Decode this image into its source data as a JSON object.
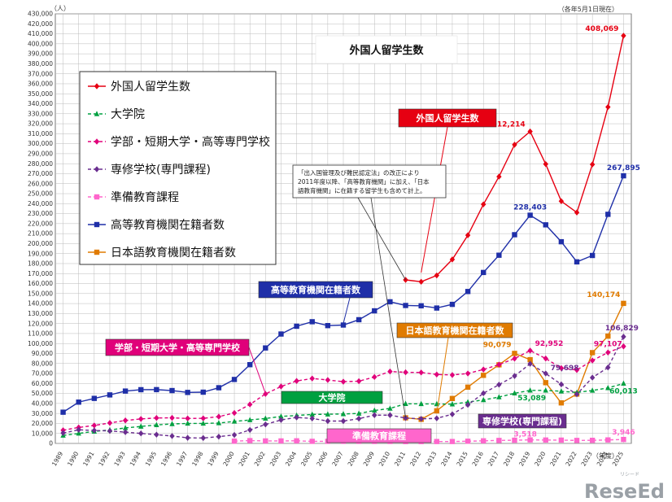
{
  "chart_data": {
    "type": "line",
    "title": "外国人留学生数",
    "unit_label": "（人）",
    "date_note": "（各年5月1日現在）",
    "x_unit_label": "（年度）",
    "ylim": [
      0,
      430000
    ],
    "ytick_step": 10000,
    "grid": true,
    "legend_position": "upper-left",
    "x": [
      "1989",
      "1990",
      "1991",
      "1992",
      "1993",
      "1994",
      "1995",
      "1996",
      "1997",
      "1998",
      "1999",
      "2000",
      "2001",
      "2002",
      "2003",
      "2004",
      "2005",
      "2006",
      "2007",
      "2008",
      "2009",
      "2010",
      "2011",
      "2012",
      "2013",
      "2014",
      "2015",
      "2016",
      "2017",
      "2018",
      "2019",
      "2020",
      "2021",
      "2022",
      "2023",
      "2024",
      "2025"
    ],
    "series": [
      {
        "key": "total",
        "name": "外国人留学生数",
        "color": "#e60012",
        "marker": "diamond",
        "dash": "",
        "values": [
          null,
          null,
          null,
          null,
          null,
          null,
          null,
          null,
          null,
          null,
          null,
          null,
          null,
          null,
          null,
          null,
          null,
          null,
          null,
          null,
          null,
          null,
          163697,
          161848,
          168145,
          184155,
          208379,
          239287,
          267042,
          298980,
          312214,
          279597,
          242444,
          231146,
          279274,
          336708,
          408069
        ]
      },
      {
        "key": "higher_ed",
        "name": "高等教育機関在籍者数",
        "color": "#1f2fa8",
        "marker": "square",
        "dash": "",
        "values": [
          31251,
          41347,
          45066,
          48561,
          52405,
          53787,
          53847,
          52921,
          51047,
          51298,
          55755,
          64011,
          78812,
          95550,
          109508,
          117302,
          121812,
          117927,
          118498,
          123829,
          132720,
          141774,
          138075,
          137756,
          135519,
          139185,
          152062,
          171122,
          188384,
          208901,
          228403,
          218783,
          201877,
          181741,
          188114,
          229313,
          267895
        ]
      },
      {
        "key": "japanese_lang",
        "name": "日本語教育機関在籍者数",
        "color": "#e07b00",
        "marker": "square",
        "dash": "",
        "values": [
          null,
          null,
          null,
          null,
          null,
          null,
          null,
          null,
          null,
          null,
          null,
          null,
          null,
          null,
          null,
          null,
          null,
          null,
          null,
          null,
          null,
          null,
          25622,
          24092,
          32626,
          44970,
          56317,
          68165,
          78658,
          90079,
          83811,
          60814,
          40567,
          49405,
          90873,
          107395,
          140174
        ]
      },
      {
        "key": "undergrad",
        "name": "学部・短期大学・高等専門学校",
        "color": "#e0007a",
        "marker": "diamond",
        "dash": "4,3",
        "values": [
          13200,
          16000,
          18000,
          20500,
          23000,
          24500,
          25500,
          25600,
          25000,
          25100,
          26800,
          30500,
          39000,
          49500,
          57000,
          62500,
          65000,
          63500,
          61800,
          62300,
          66500,
          72000,
          71200,
          71000,
          69000,
          68500,
          70000,
          74000,
          78900,
          84900,
          92952,
          85000,
          75400,
          73500,
          83000,
          91000,
          97107
        ]
      },
      {
        "key": "graduate",
        "name": "大学院",
        "color": "#00a040",
        "marker": "triangle",
        "dash": "4,3",
        "values": [
          8000,
          10000,
          12000,
          13500,
          15500,
          17000,
          18500,
          19500,
          20000,
          20000,
          20400,
          22000,
          23500,
          25000,
          27000,
          28000,
          29000,
          29200,
          29500,
          30000,
          33000,
          35000,
          39700,
          39600,
          39500,
          39300,
          41400,
          43500,
          46400,
          50200,
          53089,
          53100,
          52200,
          50980,
          53000,
          55500,
          60013
        ]
      },
      {
        "key": "vocational",
        "name": "専修学校（専門課程）",
        "color": "#6a2d8f",
        "marker": "diamond",
        "dash": "4,3",
        "values": [
          10400,
          13600,
          13000,
          12500,
          11300,
          10000,
          8800,
          7400,
          5600,
          5400,
          6800,
          8500,
          13500,
          19000,
          23500,
          26000,
          25000,
          22400,
          22400,
          24800,
          28300,
          28300,
          25400,
          24600,
          25100,
          29200,
          38600,
          50200,
          58800,
          67500,
          79698,
          70000,
          59100,
          49200,
          65900,
          76000,
          106829
        ]
      },
      {
        "key": "prep",
        "name": "準備教育課程",
        "color": "#ff66cc",
        "marker": "square",
        "dash": "4,3",
        "values": [
          null,
          null,
          null,
          null,
          null,
          null,
          null,
          null,
          null,
          null,
          null,
          2300,
          2800,
          2500,
          2500,
          2600,
          2100,
          2100,
          2100,
          2100,
          2000,
          2000,
          1800,
          1800,
          1900,
          1900,
          2200,
          2600,
          3000,
          3200,
          3518,
          3400,
          3300,
          3000,
          3100,
          3500,
          3946
        ]
      }
    ],
    "legend_entries": [
      "外国人留学生数",
      "大学院",
      "学部・短期大学・高等専門学校",
      "専修学校(専門課程)",
      "準備教育課程",
      "高等教育機関在籍者数",
      "日本語教育機関在籍者数"
    ],
    "annotation_boxes": [
      {
        "key": "box_total",
        "text": "外国人留学生数",
        "bg": "#e60012",
        "fg": "#ffffff"
      },
      {
        "key": "box_higher",
        "text": "高等教育機関在籍者数",
        "bg": "#1f2fa8",
        "fg": "#ffffff"
      },
      {
        "key": "box_japanese",
        "text": "日本語教育機関在籍者数",
        "bg": "#e07b00",
        "fg": "#ffffff"
      },
      {
        "key": "box_undergrad",
        "text": "学部・短期大学・高等専門学校",
        "bg": "#e0007a",
        "fg": "#ffffff"
      },
      {
        "key": "box_graduate",
        "text": "大学院",
        "bg": "#00a040",
        "fg": "#ffffff"
      },
      {
        "key": "box_vocational",
        "text": "専修学校(専門課程)",
        "bg": "#6a2d8f",
        "fg": "#ffffff"
      },
      {
        "key": "box_prep",
        "text": "準備教育課程",
        "bg": "#ff66cc",
        "fg": "#ffffff"
      }
    ],
    "data_labels": [
      {
        "key": "total",
        "year": "2019",
        "text": "312,214",
        "color": "#e60012"
      },
      {
        "key": "total",
        "year": "2025",
        "text": "408,069",
        "color": "#e60012"
      },
      {
        "key": "higher_ed",
        "year": "2019",
        "text": "228,403",
        "color": "#1f2fa8"
      },
      {
        "key": "higher_ed",
        "year": "2025",
        "text": "267,895",
        "color": "#1f2fa8"
      },
      {
        "key": "japanese_lang",
        "year": "2018",
        "text": "90,079",
        "color": "#e07b00"
      },
      {
        "key": "japanese_lang",
        "year": "2025",
        "text": "140,174",
        "color": "#e07b00"
      },
      {
        "key": "undergrad",
        "year": "2019",
        "text": "92,952",
        "color": "#e0007a"
      },
      {
        "key": "undergrad",
        "year": "2024",
        "text": "97,107",
        "color": "#e0007a"
      },
      {
        "key": "vocational",
        "year": "2020",
        "text": "79,698",
        "color": "#6a2d8f"
      },
      {
        "key": "vocational",
        "year": "2025",
        "text": "106,829",
        "color": "#6a2d8f"
      },
      {
        "key": "graduate",
        "year": "2019",
        "text": "53,089",
        "color": "#00a040"
      },
      {
        "key": "graduate",
        "year": "2025",
        "text": "60,013",
        "color": "#00a040"
      },
      {
        "key": "prep",
        "year": "2019",
        "text": "3,518",
        "color": "#ff66cc"
      },
      {
        "key": "prep",
        "year": "2025",
        "text": "3,946",
        "color": "#ff66cc"
      }
    ],
    "note_lines": [
      "「出入国管理及び難民認定法」の改正により",
      "2011年度以降、「高等教育機関」に加え、「日本",
      "語教育機関」に在籍する留学生も含めて計上。"
    ]
  },
  "watermark": {
    "text": "ReseEd",
    "small": "リシード"
  }
}
